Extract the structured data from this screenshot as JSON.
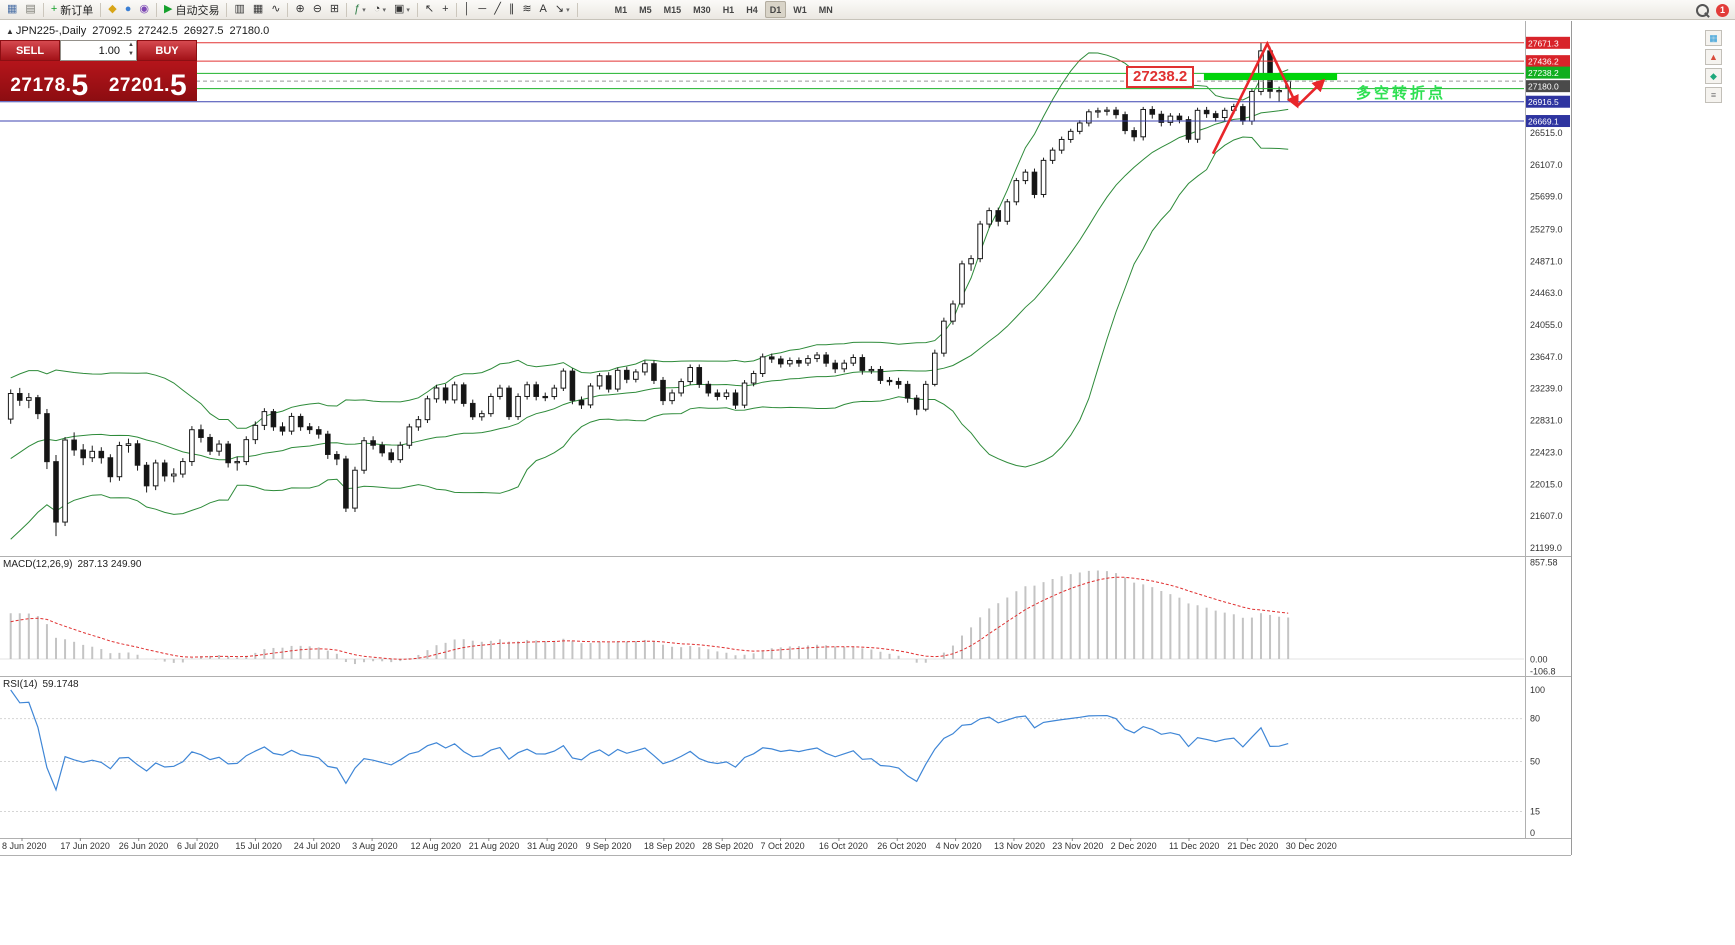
{
  "toolbar": {
    "badge": "1",
    "groups": [
      {
        "items": [
          {
            "name": "new-chart-window-button",
            "glyph": "▦",
            "color": "#4a6fa5"
          },
          {
            "name": "profiles-button",
            "glyph": "▤",
            "color": "#7a7a72"
          }
        ]
      },
      {
        "items": [
          {
            "name": "new-order-button",
            "glyph": "+",
            "color": "#15a02c",
            "label": "新订单"
          }
        ]
      },
      {
        "items": [
          {
            "name": "market-watch-button",
            "glyph": "◆",
            "color": "#d8a517"
          },
          {
            "name": "data-window-button",
            "glyph": "●",
            "color": "#3b7fd4"
          },
          {
            "name": "navigator-button",
            "glyph": "◉",
            "color": "#7d49b5"
          }
        ]
      },
      {
        "items": [
          {
            "name": "autotrading-button",
            "glyph": "▶",
            "color": "#15a02c",
            "label": "自动交易"
          }
        ]
      },
      {
        "items": [
          {
            "name": "bar-chart-mode-button",
            "glyph": "▥"
          },
          {
            "name": "candlestick-mode-button",
            "glyph": "▦"
          },
          {
            "name": "line-chart-mode-button",
            "glyph": "∿"
          }
        ]
      },
      {
        "items": [
          {
            "name": "zoom-in-button",
            "glyph": "⊕"
          },
          {
            "name": "zoom-out-button",
            "glyph": "⊖"
          },
          {
            "name": "tile-windows-button",
            "glyph": "⊞"
          }
        ]
      },
      {
        "items": [
          {
            "name": "indicators-button",
            "glyph": "ƒ",
            "color": "#2d7d46",
            "caret": true
          },
          {
            "name": "period-button",
            "glyph": "◔",
            "caret": true
          },
          {
            "name": "templates-button",
            "glyph": "▣",
            "caret": true
          }
        ]
      },
      {
        "items": [
          {
            "name": "cursor-button",
            "glyph": "↖"
          },
          {
            "name": "crosshair-button",
            "glyph": "+"
          }
        ]
      },
      {
        "items": [
          {
            "name": "vertical-line-button",
            "glyph": "│"
          },
          {
            "name": "horizontal-line-button",
            "glyph": "─"
          },
          {
            "name": "trendline-button",
            "glyph": "╱"
          },
          {
            "name": "channel-button",
            "glyph": "∥"
          },
          {
            "name": "fibonacci-button",
            "glyph": "≋"
          },
          {
            "name": "text-button",
            "glyph": "A"
          },
          {
            "name": "arrows-button",
            "glyph": "↘",
            "caret": true
          }
        ]
      },
      {
        "cls": "tfgroup",
        "items": [
          {
            "name": "tf-m1-button",
            "label": "M1",
            "cls": "tf"
          },
          {
            "name": "tf-m5-button",
            "label": "M5",
            "cls": "tf"
          },
          {
            "name": "tf-m15-button",
            "label": "M15",
            "cls": "tf"
          },
          {
            "name": "tf-m30-button",
            "label": "M30",
            "cls": "tf"
          },
          {
            "name": "tf-h1-button",
            "label": "H1",
            "cls": "tf"
          },
          {
            "name": "tf-h4-button",
            "label": "H4",
            "cls": "tf"
          },
          {
            "name": "tf-d1-button",
            "label": "D1",
            "cls": "tf",
            "active": true
          },
          {
            "name": "tf-w1-button",
            "label": "W1",
            "cls": "tf"
          },
          {
            "name": "tf-mn-button",
            "label": "MN",
            "cls": "tf"
          }
        ]
      }
    ]
  },
  "right_dock": {
    "items": [
      {
        "name": "dock-chart-icon",
        "glyph": "▦",
        "color": "#2d9bd8"
      },
      {
        "name": "dock-alert-icon",
        "glyph": "▲",
        "color": "#d84b3b"
      },
      {
        "name": "dock-symbol-icon",
        "glyph": "◆",
        "color": "#1fa87c"
      },
      {
        "name": "dock-menu-icon",
        "glyph": "≡",
        "color": "#777777"
      }
    ]
  },
  "trade_panel": {
    "sell_label": "SELL",
    "buy_label": "BUY",
    "volume": "1.00",
    "sell_price": "27178.5",
    "buy_price": "27201.5"
  },
  "chart": {
    "title": {
      "symbol_period": "JPN225-,Daily",
      "open": "27092.5",
      "high": "27242.5",
      "low": "26927.5",
      "close": "27180.0"
    },
    "price_axis": {
      "tags": [
        {
          "text": "27671.3",
          "price": 27671.3,
          "bg": "#d8232a",
          "dy": 0
        },
        {
          "text": "27436.2",
          "price": 27436.2,
          "bg": "#d8232a",
          "dy": 0
        },
        {
          "text": "27238.2",
          "price": 27238.2,
          "bg": "#0fae1f",
          "dy": -4
        },
        {
          "text": "27180.0",
          "price": 27180.0,
          "bg": "#4a4a4a",
          "dy": 5
        },
        {
          "text": "26916.5",
          "price": 26916.5,
          "bg": "#2e34a0",
          "dy": 0
        },
        {
          "text": "26669.1",
          "price": 26669.1,
          "bg": "#2e34a0",
          "dy": 0
        }
      ]
    },
    "levels": [
      {
        "price": 27671.3,
        "color": "#e23333"
      },
      {
        "price": 27436.2,
        "color": "#e23333"
      },
      {
        "price": 27280.0,
        "color": "#1fb32b"
      },
      {
        "price": 27085.0,
        "color": "#1fb32b"
      },
      {
        "price": 26916.5,
        "color": "#3c43b0"
      },
      {
        "price": 26669.1,
        "color": "#3c43b0"
      }
    ],
    "current_price_line": {
      "price": 27180.0,
      "color": "#999999"
    },
    "zone_bar": {
      "price": 27238.2,
      "from_index": 132,
      "to_index": 146.7,
      "height": 7,
      "color": "#00d40a"
    },
    "callout": {
      "text": "27238.2",
      "color": "#e03131"
    },
    "annotation_cn": {
      "text": "多空转折点",
      "color": "#2ee052"
    },
    "arrows": {
      "color": "#e8262a",
      "segments": [
        [
          [
            133,
            26250
          ],
          [
            139,
            27660
          ],
          [
            142.3,
            26860
          ]
        ],
        [
          [
            142.3,
            26860
          ],
          [
            145.2,
            27190
          ]
        ]
      ]
    }
  },
  "macd_panel": {
    "label": "MACD(12,26,9)",
    "values": "287.13 249.90",
    "axis": [
      "857.58",
      "0.00",
      "-106.8"
    ]
  },
  "rsi_panel": {
    "label": "RSI(14)",
    "value": "59.1748",
    "axis": [
      "100",
      "80",
      "50",
      "15",
      "0"
    ],
    "levels": [
      80,
      50,
      15
    ]
  },
  "chart_data": {
    "type": "candlestick",
    "symbol": "JPN225-",
    "period": "Daily",
    "current_ohlc": {
      "open": 27092.5,
      "high": 27242.5,
      "low": 26927.5,
      "close": 27180.0
    },
    "x_labels": [
      "8 Jun 2020",
      "17 Jun 2020",
      "26 Jun 2020",
      "6 Jul 2020",
      "15 Jul 2020",
      "24 Jul 2020",
      "3 Aug 2020",
      "12 Aug 2020",
      "21 Aug 2020",
      "31 Aug 2020",
      "9 Sep 2020",
      "18 Sep 2020",
      "28 Sep 2020",
      "7 Oct 2020",
      "16 Oct 2020",
      "26 Oct 2020",
      "4 Nov 2020",
      "13 Nov 2020",
      "23 Nov 2020",
      "2 Dec 2020",
      "11 Dec 2020",
      "21 Dec 2020",
      "30 Dec 2020"
    ],
    "y_ticks": [
      "26515.0",
      "26107.0",
      "25699.0",
      "25279.0",
      "24871.0",
      "24463.0",
      "24055.0",
      "23647.0",
      "23239.0",
      "22831.0",
      "22423.0",
      "22015.0",
      "21607.0",
      "21199.0"
    ],
    "indicators": [
      {
        "name": "Bollinger Bands",
        "period": 20,
        "deviation": 2,
        "color": "#2e8b3a"
      },
      {
        "name": "MACD",
        "fast": 12,
        "slow": 26,
        "signal": 9,
        "current": "287.13 249.90"
      },
      {
        "name": "RSI",
        "period": 14,
        "current": 59.1748
      }
    ],
    "indicator_warmup": [
      21400,
      21490,
      21580,
      21670,
      21760,
      21850,
      21940,
      22030,
      22120,
      22210,
      22300,
      22390,
      22480,
      22570,
      22660,
      22750,
      22840,
      22930,
      23020,
      23110
    ],
    "candles": [
      [
        22850,
        23230,
        22790,
        23178
      ],
      [
        23178,
        23250,
        23020,
        23091
      ],
      [
        23091,
        23185,
        22990,
        23125
      ],
      [
        23125,
        23160,
        22850,
        22920
      ],
      [
        22920,
        22980,
        22210,
        22305
      ],
      [
        22305,
        22390,
        21350,
        21531
      ],
      [
        21531,
        22620,
        21480,
        22582
      ],
      [
        22582,
        22680,
        22380,
        22455
      ],
      [
        22455,
        22530,
        22260,
        22355
      ],
      [
        22355,
        22510,
        22300,
        22437
      ],
      [
        22437,
        22490,
        22280,
        22355
      ],
      [
        22355,
        22400,
        22040,
        22112
      ],
      [
        22112,
        22560,
        22060,
        22512
      ],
      [
        22512,
        22600,
        22420,
        22534
      ],
      [
        22534,
        22580,
        22190,
        22259
      ],
      [
        22259,
        22300,
        21910,
        21995
      ],
      [
        21995,
        22330,
        21940,
        22288
      ],
      [
        22288,
        22330,
        22050,
        22122
      ],
      [
        22122,
        22220,
        22040,
        22146
      ],
      [
        22146,
        22350,
        22100,
        22306
      ],
      [
        22306,
        22760,
        22250,
        22714
      ],
      [
        22714,
        22780,
        22550,
        22615
      ],
      [
        22615,
        22660,
        22390,
        22439
      ],
      [
        22439,
        22580,
        22380,
        22530
      ],
      [
        22530,
        22570,
        22230,
        22291
      ],
      [
        22291,
        22370,
        22190,
        22306
      ],
      [
        22306,
        22630,
        22260,
        22587
      ],
      [
        22587,
        22820,
        22530,
        22770
      ],
      [
        22770,
        22990,
        22710,
        22946
      ],
      [
        22946,
        22980,
        22700,
        22751
      ],
      [
        22751,
        22810,
        22640,
        22696
      ],
      [
        22696,
        22930,
        22650,
        22884
      ],
      [
        22884,
        22920,
        22700,
        22752
      ],
      [
        22752,
        22800,
        22660,
        22715
      ],
      [
        22715,
        22760,
        22600,
        22657
      ],
      [
        22657,
        22700,
        22340,
        22397
      ],
      [
        22397,
        22440,
        22260,
        22339
      ],
      [
        22339,
        22380,
        21660,
        21710
      ],
      [
        21710,
        22240,
        21660,
        22195
      ],
      [
        22195,
        22620,
        22150,
        22573
      ],
      [
        22573,
        22630,
        22460,
        22515
      ],
      [
        22515,
        22560,
        22370,
        22418
      ],
      [
        22418,
        22470,
        22290,
        22330
      ],
      [
        22330,
        22560,
        22290,
        22515
      ],
      [
        22515,
        22790,
        22470,
        22750
      ],
      [
        22750,
        22890,
        22700,
        22843
      ],
      [
        22843,
        23150,
        22800,
        23110
      ],
      [
        23110,
        23290,
        23060,
        23249
      ],
      [
        23249,
        23300,
        23050,
        23096
      ],
      [
        23096,
        23330,
        23050,
        23289
      ],
      [
        23289,
        23320,
        23010,
        23051
      ],
      [
        23051,
        23100,
        22840,
        22880
      ],
      [
        22880,
        22960,
        22830,
        22920
      ],
      [
        22920,
        23180,
        22880,
        23140
      ],
      [
        23140,
        23290,
        23100,
        23247
      ],
      [
        23247,
        23280,
        22840,
        22882
      ],
      [
        22882,
        23180,
        22840,
        23140
      ],
      [
        23140,
        23330,
        23100,
        23290
      ],
      [
        23290,
        23330,
        23090,
        23140
      ],
      [
        23140,
        23190,
        23080,
        23139
      ],
      [
        23139,
        23290,
        23100,
        23247
      ],
      [
        23247,
        23500,
        23210,
        23465
      ],
      [
        23465,
        23500,
        23040,
        23090
      ],
      [
        23090,
        23140,
        22980,
        23032
      ],
      [
        23032,
        23310,
        22990,
        23274
      ],
      [
        23274,
        23440,
        23230,
        23406
      ],
      [
        23406,
        23450,
        23190,
        23235
      ],
      [
        23235,
        23510,
        23200,
        23475
      ],
      [
        23475,
        23520,
        23310,
        23360
      ],
      [
        23360,
        23490,
        23320,
        23454
      ],
      [
        23454,
        23600,
        23410,
        23560
      ],
      [
        23560,
        23600,
        23300,
        23346
      ],
      [
        23346,
        23390,
        23030,
        23087
      ],
      [
        23087,
        23230,
        23040,
        23185
      ],
      [
        23185,
        23370,
        23140,
        23331
      ],
      [
        23331,
        23550,
        23290,
        23511
      ],
      [
        23511,
        23550,
        23250,
        23296
      ],
      [
        23296,
        23340,
        23140,
        23185
      ],
      [
        23185,
        23230,
        23090,
        23140
      ],
      [
        23140,
        23230,
        23100,
        23185
      ],
      [
        23185,
        23230,
        22980,
        23029
      ],
      [
        23029,
        23350,
        22990,
        23312
      ],
      [
        23312,
        23470,
        23270,
        23434
      ],
      [
        23434,
        23690,
        23390,
        23647
      ],
      [
        23647,
        23690,
        23570,
        23620
      ],
      [
        23620,
        23660,
        23510,
        23558
      ],
      [
        23558,
        23640,
        23520,
        23601
      ],
      [
        23601,
        23640,
        23520,
        23568
      ],
      [
        23568,
        23670,
        23530,
        23626
      ],
      [
        23626,
        23710,
        23580,
        23671
      ],
      [
        23671,
        23710,
        23520,
        23567
      ],
      [
        23567,
        23610,
        23440,
        23494
      ],
      [
        23494,
        23610,
        23450,
        23567
      ],
      [
        23567,
        23680,
        23530,
        23639
      ],
      [
        23639,
        23680,
        23420,
        23474
      ],
      [
        23474,
        23530,
        23430,
        23486
      ],
      [
        23486,
        23530,
        23300,
        23346
      ],
      [
        23346,
        23390,
        23280,
        23332
      ],
      [
        23332,
        23380,
        23240,
        23295
      ],
      [
        23295,
        23340,
        23060,
        23119
      ],
      [
        23119,
        23160,
        22900,
        22977
      ],
      [
        22977,
        23340,
        22950,
        23295
      ],
      [
        23295,
        23740,
        23270,
        23695
      ],
      [
        23695,
        24150,
        23650,
        24105
      ],
      [
        24105,
        24370,
        24060,
        24325
      ],
      [
        24325,
        24880,
        24280,
        24839
      ],
      [
        24839,
        24950,
        24750,
        24906
      ],
      [
        24906,
        25390,
        24860,
        25349
      ],
      [
        25349,
        25560,
        25300,
        25521
      ],
      [
        25521,
        25560,
        25320,
        25385
      ],
      [
        25385,
        25670,
        25340,
        25634
      ],
      [
        25634,
        25940,
        25590,
        25906
      ],
      [
        25906,
        26050,
        25860,
        26014
      ],
      [
        26014,
        26060,
        25680,
        25728
      ],
      [
        25728,
        26200,
        25690,
        26165
      ],
      [
        26165,
        26330,
        26120,
        26296
      ],
      [
        26296,
        26470,
        26250,
        26433
      ],
      [
        26433,
        26570,
        26390,
        26537
      ],
      [
        26537,
        26680,
        26500,
        26644
      ],
      [
        26644,
        26820,
        26600,
        26787
      ],
      [
        26787,
        26840,
        26710,
        26800
      ],
      [
        26800,
        26850,
        26740,
        26809
      ],
      [
        26809,
        26850,
        26700,
        26751
      ],
      [
        26751,
        26790,
        26500,
        26547
      ],
      [
        26547,
        26590,
        26410,
        26467
      ],
      [
        26467,
        26850,
        26420,
        26817
      ],
      [
        26817,
        26860,
        26700,
        26756
      ],
      [
        26756,
        26800,
        26600,
        26652
      ],
      [
        26652,
        26770,
        26610,
        26732
      ],
      [
        26732,
        26770,
        26640,
        26687
      ],
      [
        26687,
        26730,
        26390,
        26436
      ],
      [
        26436,
        26840,
        26390,
        26806
      ],
      [
        26806,
        26850,
        26710,
        26763
      ],
      [
        26763,
        26800,
        26660,
        26714
      ],
      [
        26714,
        26840,
        26670,
        26806
      ],
      [
        26806,
        26890,
        26760,
        26854
      ],
      [
        26854,
        26890,
        26620,
        26668
      ],
      [
        26668,
        27090,
        26620,
        27048
      ],
      [
        27048,
        27671,
        27000,
        27568
      ],
      [
        27568,
        27620,
        26960,
        27050
      ],
      [
        27050,
        27110,
        26920,
        27060
      ],
      [
        27092.5,
        27242.5,
        26927.5,
        27180
      ]
    ]
  }
}
